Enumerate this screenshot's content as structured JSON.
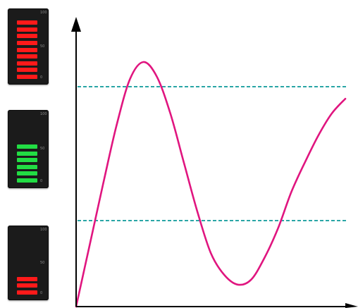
{
  "meters": [
    {
      "id": "top",
      "level": 1.0,
      "lit_color": "#ff1a1a",
      "lit_segments": 9,
      "total_segments": 9,
      "scale": [
        "100",
        "50",
        "0"
      ]
    },
    {
      "id": "mid",
      "level": 0.67,
      "lit_color": "#22dd44",
      "lit_segments": 6,
      "total_segments": 9,
      "scale": [
        "100",
        "50",
        "0"
      ]
    },
    {
      "id": "bot",
      "level": 0.33,
      "lit_color": "#ff1a1a",
      "lit_segments": 3,
      "total_segments": 9,
      "scale": [
        "100",
        "50",
        "0"
      ]
    }
  ],
  "graph": {
    "curve_color": "#e0157f",
    "threshold_color": "#2aa6a6",
    "axis_color": "#000000",
    "curve_samples": [
      [
        0.0,
        0.0
      ],
      [
        0.05,
        0.25
      ],
      [
        0.1,
        0.5
      ],
      [
        0.15,
        0.74
      ],
      [
        0.2,
        0.93
      ],
      [
        0.25,
        1.0
      ],
      [
        0.3,
        0.94
      ],
      [
        0.35,
        0.79
      ],
      [
        0.4,
        0.59
      ],
      [
        0.45,
        0.39
      ],
      [
        0.5,
        0.22
      ],
      [
        0.55,
        0.13
      ],
      [
        0.6,
        0.09
      ],
      [
        0.65,
        0.11
      ],
      [
        0.7,
        0.2
      ],
      [
        0.75,
        0.32
      ],
      [
        0.8,
        0.47
      ],
      [
        0.85,
        0.59
      ],
      [
        0.9,
        0.7
      ],
      [
        0.95,
        0.79
      ],
      [
        1.0,
        0.85
      ]
    ],
    "threshold_high": 0.83,
    "threshold_low": 0.33
  }
}
